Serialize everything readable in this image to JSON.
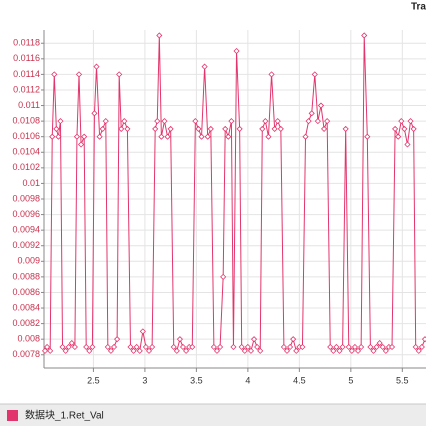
{
  "chart_data": {
    "type": "line",
    "title": "Tra",
    "xlim": [
      2.02,
      5.73
    ],
    "xticks": [
      2.5,
      3,
      3.5,
      4,
      4.5,
      5,
      5.5
    ],
    "ylim": [
      0.00763,
      0.01197
    ],
    "yticks": [
      0.0078,
      0.008,
      0.0082,
      0.0084,
      0.0086,
      0.0088,
      0.009,
      0.0092,
      0.0094,
      0.0096,
      0.0098,
      0.01,
      0.0102,
      0.0104,
      0.0106,
      0.0108,
      0.011,
      0.0112,
      0.0114,
      0.0116,
      0.0118
    ],
    "grid": true,
    "legend": "bottom",
    "series": [
      {
        "name": "数据块_1.Ret_Val",
        "color": "#e3356d",
        "x": [
          2.03,
          2.05,
          2.08,
          2.1,
          2.12,
          2.14,
          2.16,
          2.18,
          2.2,
          2.23,
          2.26,
          2.29,
          2.32,
          2.34,
          2.36,
          2.38,
          2.41,
          2.43,
          2.46,
          2.49,
          2.51,
          2.53,
          2.56,
          2.59,
          2.62,
          2.64,
          2.67,
          2.7,
          2.73,
          2.75,
          2.77,
          2.8,
          2.83,
          2.86,
          2.89,
          2.92,
          2.95,
          2.98,
          3.01,
          3.04,
          3.07,
          3.1,
          3.12,
          3.14,
          3.16,
          3.19,
          3.22,
          3.25,
          3.28,
          3.31,
          3.34,
          3.37,
          3.4,
          3.43,
          3.46,
          3.49,
          3.52,
          3.55,
          3.58,
          3.61,
          3.64,
          3.67,
          3.7,
          3.73,
          3.76,
          3.78,
          3.81,
          3.84,
          3.86,
          3.89,
          3.92,
          3.94,
          3.97,
          4.0,
          4.03,
          4.06,
          4.09,
          4.12,
          4.14,
          4.17,
          4.2,
          4.23,
          4.26,
          4.29,
          4.32,
          4.35,
          4.38,
          4.41,
          4.44,
          4.47,
          4.5,
          4.53,
          4.56,
          4.59,
          4.62,
          4.65,
          4.68,
          4.71,
          4.74,
          4.77,
          4.8,
          4.83,
          4.86,
          4.89,
          4.92,
          4.95,
          4.98,
          5.01,
          5.04,
          5.07,
          5.1,
          5.13,
          5.16,
          5.19,
          5.22,
          5.25,
          5.28,
          5.31,
          5.34,
          5.37,
          5.4,
          5.43,
          5.46,
          5.49,
          5.52,
          5.55,
          5.58,
          5.61,
          5.63,
          5.66,
          5.69,
          5.72
        ],
        "values": [
          0.00785,
          0.0079,
          0.00785,
          0.0106,
          0.0114,
          0.0107,
          0.0106,
          0.0108,
          0.0079,
          0.00785,
          0.0079,
          0.00795,
          0.0079,
          0.0106,
          0.0114,
          0.0105,
          0.0106,
          0.0079,
          0.00785,
          0.0079,
          0.0109,
          0.0115,
          0.0106,
          0.0107,
          0.0108,
          0.0079,
          0.00785,
          0.0079,
          0.008,
          0.0114,
          0.0107,
          0.0108,
          0.0107,
          0.0079,
          0.00785,
          0.0079,
          0.00785,
          0.0081,
          0.0079,
          0.00785,
          0.0079,
          0.0107,
          0.0108,
          0.0119,
          0.0106,
          0.0108,
          0.0106,
          0.0107,
          0.0079,
          0.00785,
          0.008,
          0.0079,
          0.00785,
          0.0079,
          0.0079,
          0.0108,
          0.0107,
          0.0106,
          0.0115,
          0.0106,
          0.0107,
          0.0079,
          0.00785,
          0.0079,
          0.0088,
          0.0107,
          0.0106,
          0.0108,
          0.0079,
          0.0117,
          0.0107,
          0.0079,
          0.00785,
          0.0079,
          0.00785,
          0.008,
          0.0079,
          0.00785,
          0.0107,
          0.0108,
          0.0106,
          0.0114,
          0.0107,
          0.0108,
          0.0107,
          0.0079,
          0.00785,
          0.0079,
          0.008,
          0.00785,
          0.0079,
          0.0079,
          0.0106,
          0.0108,
          0.0109,
          0.0114,
          0.0108,
          0.011,
          0.0107,
          0.0108,
          0.0079,
          0.00785,
          0.0079,
          0.00785,
          0.0079,
          0.0107,
          0.0079,
          0.00785,
          0.0079,
          0.00785,
          0.0079,
          0.0119,
          0.0106,
          0.0079,
          0.00785,
          0.0079,
          0.00795,
          0.0079,
          0.00785,
          0.0079,
          0.0079,
          0.0107,
          0.0106,
          0.0108,
          0.0107,
          0.0105,
          0.0108,
          0.0107,
          0.0079,
          0.00785,
          0.0079,
          0.008
        ]
      }
    ]
  }
}
